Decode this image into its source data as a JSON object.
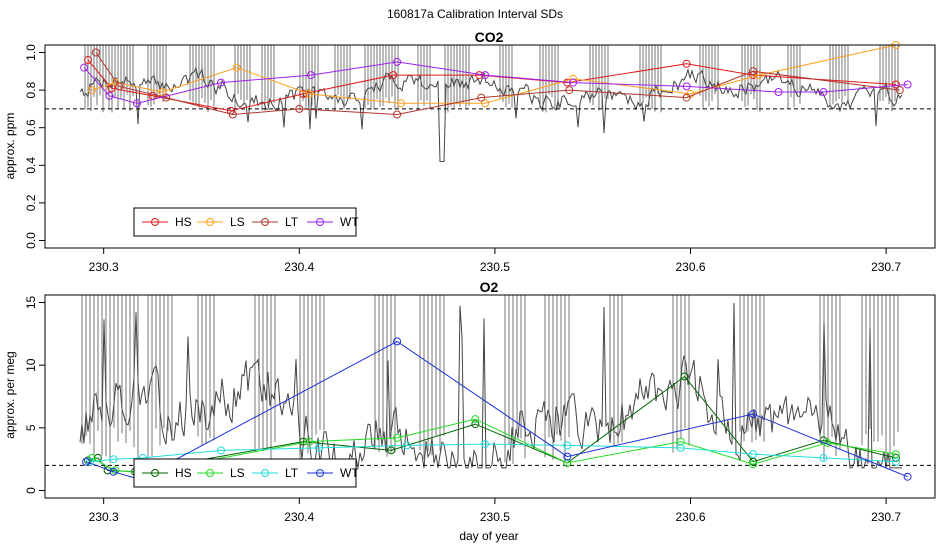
{
  "figure_title": "160817a   Calibration Interval SDs",
  "reference_line_label": "dashed reference",
  "chart_data": [
    {
      "type": "line",
      "title": "CO2",
      "xlabel": "",
      "ylabel": "approx. ppm",
      "xlim": [
        230.27,
        230.725
      ],
      "ylim": [
        -0.04,
        1.04
      ],
      "xticks": [
        "230.3",
        "230.4",
        "230.5",
        "230.6",
        "230.7"
      ],
      "xtick_values": [
        230.3,
        230.4,
        230.5,
        230.6,
        230.7
      ],
      "yticks": [
        "0.0",
        "0.2",
        "0.4",
        "0.6",
        "0.8",
        "1.0"
      ],
      "ytick_values": [
        0.0,
        0.2,
        0.4,
        0.6,
        0.8,
        1.0
      ],
      "reference_y": 0.7,
      "trace": {
        "name": "continuous record",
        "color": "#444444"
      },
      "legend_position": "bottom-left",
      "series": [
        {
          "name": "HS",
          "color": "#e41a1c",
          "x": [
            230.292,
            230.304,
            230.325,
            230.365,
            230.402,
            230.448,
            230.492,
            230.537,
            230.598,
            230.632,
            230.705
          ],
          "y": [
            0.96,
            0.81,
            0.77,
            0.69,
            0.78,
            0.88,
            0.88,
            0.84,
            0.94,
            0.88,
            0.83
          ]
        },
        {
          "name": "LS",
          "color": "#ff9f1a",
          "x": [
            230.294,
            230.306,
            230.33,
            230.368,
            230.405,
            230.452,
            230.495,
            230.54,
            230.6,
            230.635,
            230.705
          ],
          "y": [
            0.8,
            0.84,
            0.79,
            0.92,
            0.78,
            0.73,
            0.73,
            0.86,
            0.78,
            0.88,
            1.04
          ]
        },
        {
          "name": "LT",
          "color": "#b2342a",
          "x": [
            230.296,
            230.308,
            230.332,
            230.366,
            230.4,
            230.45,
            230.493,
            230.538,
            230.598,
            230.632,
            230.707
          ],
          "y": [
            1.0,
            0.82,
            0.76,
            0.67,
            0.7,
            0.67,
            0.76,
            0.8,
            0.76,
            0.9,
            0.8
          ]
        },
        {
          "name": "WT",
          "color": "#a020f0",
          "x": [
            230.29,
            230.303,
            230.317,
            230.36,
            230.406,
            230.45,
            230.495,
            230.54,
            230.598,
            230.645,
            230.668,
            230.711
          ],
          "y": [
            0.92,
            0.77,
            0.73,
            0.84,
            0.88,
            0.95,
            0.88,
            0.84,
            0.82,
            0.79,
            0.79,
            0.83
          ]
        }
      ]
    },
    {
      "type": "line",
      "title": "O2",
      "xlabel": "day of year",
      "ylabel": "approx. per meg",
      "xlim": [
        230.27,
        230.725
      ],
      "ylim": [
        -0.6,
        15.6
      ],
      "xticks": [
        "230.3",
        "230.4",
        "230.5",
        "230.6",
        "230.7"
      ],
      "xtick_values": [
        230.3,
        230.4,
        230.5,
        230.6,
        230.7
      ],
      "yticks": [
        "0",
        "5",
        "10",
        "15"
      ],
      "ytick_values": [
        0,
        5,
        10,
        15
      ],
      "reference_y": 2.0,
      "trace": {
        "name": "continuous record",
        "color": "#444444"
      },
      "legend_position": "bottom-left",
      "series": [
        {
          "name": "HS",
          "color": "#006400",
          "x": [
            230.292,
            230.297,
            230.302,
            230.316,
            230.402,
            230.447,
            230.49,
            230.537,
            230.597,
            230.632,
            230.668,
            230.705
          ],
          "y": [
            2.4,
            2.6,
            1.6,
            1.5,
            3.9,
            3.2,
            5.3,
            2.2,
            9.1,
            2.3,
            4.0,
            2.6
          ]
        },
        {
          "name": "LS",
          "color": "#22dd22",
          "x": [
            230.294,
            230.306,
            230.32,
            230.405,
            230.45,
            230.49,
            230.537,
            230.595,
            230.632,
            230.67,
            230.705
          ],
          "y": [
            2.6,
            1.6,
            1.4,
            3.9,
            4.2,
            5.7,
            2.2,
            3.9,
            2.1,
            3.8,
            2.9
          ]
        },
        {
          "name": "LT",
          "color": "#22dddd",
          "x": [
            230.293,
            230.305,
            230.32,
            230.36,
            230.41,
            230.455,
            230.495,
            230.537,
            230.595,
            230.632,
            230.668,
            230.705
          ],
          "y": [
            2.3,
            2.5,
            2.6,
            3.2,
            3.4,
            3.6,
            3.7,
            3.6,
            3.4,
            2.9,
            2.6,
            2.3
          ]
        },
        {
          "name": "WT",
          "color": "#1a2fd8",
          "x": [
            230.291,
            230.305,
            230.318,
            230.45,
            230.537,
            230.632,
            230.711
          ],
          "y": [
            2.3,
            1.5,
            0.9,
            11.9,
            2.7,
            6.1,
            1.1
          ]
        }
      ]
    }
  ]
}
